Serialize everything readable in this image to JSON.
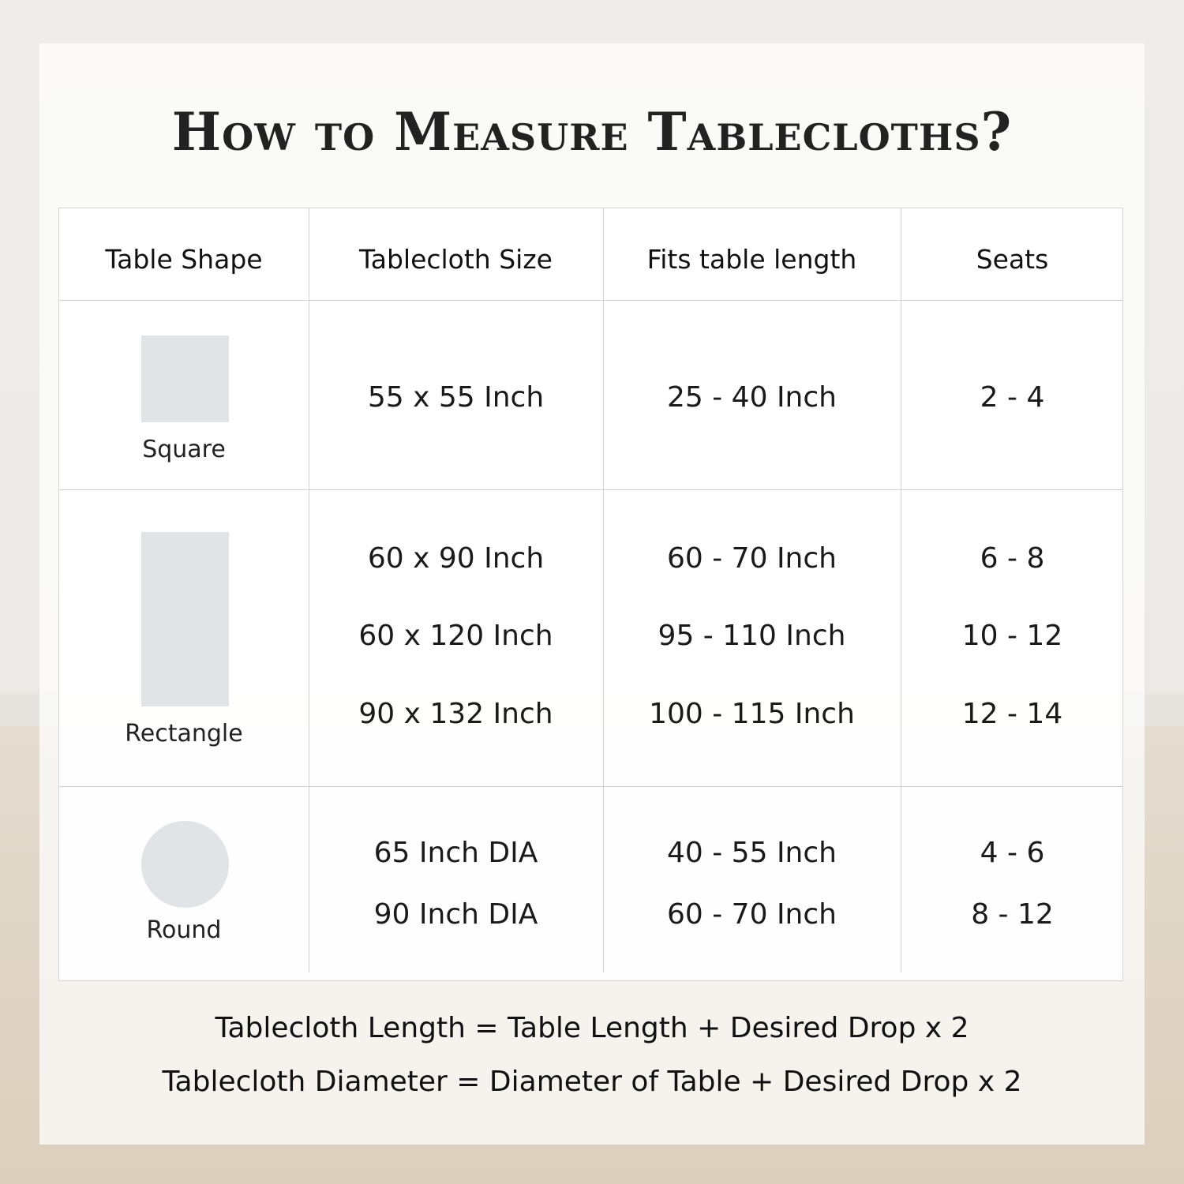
{
  "title": "How to Measure Tablecloths?",
  "table": {
    "headers": [
      "Table Shape",
      "Tablecloth Size",
      "Fits table length",
      "Seats"
    ],
    "rows": [
      {
        "shape": "Square",
        "sizes": [
          "55 x 55 Inch"
        ],
        "lengths": [
          "25 - 40 Inch"
        ],
        "seats": [
          "2 - 4"
        ]
      },
      {
        "shape": "Rectangle",
        "sizes": [
          "60 x 90 Inch",
          "60 x 120 Inch",
          "90 x 132 Inch"
        ],
        "lengths": [
          "60 - 70 Inch",
          "95 - 110 Inch",
          "100 - 115 Inch"
        ],
        "seats": [
          "6 - 8",
          "10 - 12",
          "12 - 14"
        ]
      },
      {
        "shape": "Round",
        "sizes": [
          "65 Inch DIA",
          "90 Inch DIA"
        ],
        "lengths": [
          "40 - 55 Inch",
          "60 - 70 Inch"
        ],
        "seats": [
          "4 - 6",
          "8 - 12"
        ]
      }
    ]
  },
  "formulas": [
    "Tablecloth Length = Table Length + Desired Drop x 2",
    "Tablecloth Diameter = Diameter of Table + Desired Drop x 2"
  ],
  "colors": {
    "shape_fill": "#e1e3e6",
    "grid": "#d0d0d0"
  }
}
